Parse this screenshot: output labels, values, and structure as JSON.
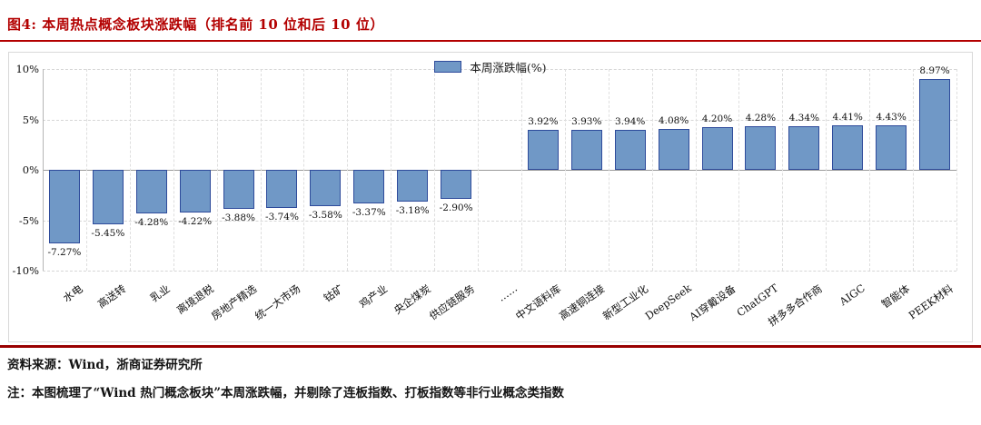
{
  "header": {
    "title": "图4:  本周热点概念板块涨跌幅（排名前 10 位和后 10 位）"
  },
  "chart_data": {
    "type": "bar",
    "title": "本周热点概念板块涨跌幅（排名前 10 位和后 10 位）",
    "legend": "本周涨跌幅(%)",
    "legend_position": "top-center",
    "xlabel": "",
    "ylabel": "",
    "ylim": [
      -10,
      10
    ],
    "yticks": [
      "10%",
      "5%",
      "0%",
      "-5%",
      "-10%"
    ],
    "ytick_values": [
      10,
      5,
      0,
      -5,
      -10
    ],
    "grid": "dashed-both-axes",
    "categories": [
      "水电",
      "高送转",
      "乳业",
      "离境退税",
      "房地产精选",
      "统一大市场",
      "钴矿",
      "鸡产业",
      "央企煤炭",
      "供应链服务",
      "……",
      "中文语料库",
      "高速铜连接",
      "新型工业化",
      "DeepSeek",
      "AI穿戴设备",
      "ChatGPT",
      "拼多多合作商",
      "AIGC",
      "智能体",
      "PEEK材料"
    ],
    "values": [
      -7.27,
      -5.45,
      -4.28,
      -4.22,
      -3.88,
      -3.74,
      -3.58,
      -3.37,
      -3.18,
      -2.9,
      null,
      3.92,
      3.93,
      3.94,
      4.08,
      4.2,
      4.28,
      4.34,
      4.41,
      4.43,
      8.97
    ],
    "labels": [
      "-7.27%",
      "-5.45%",
      "-4.28%",
      "-4.22%",
      "-3.88%",
      "-3.74%",
      "-3.58%",
      "-3.37%",
      "-3.18%",
      "-2.90%",
      "",
      "3.92%",
      "3.93%",
      "3.94%",
      "4.08%",
      "4.20%",
      "4.28%",
      "4.34%",
      "4.41%",
      "4.43%",
      "8.97%"
    ]
  },
  "footer": {
    "source": "资料来源：Wind，浙商证券研究所",
    "note": "注：本图梳理了“Wind 热门概念板块”本周涨跌幅，并剔除了连板指数、打板指数等非行业概念类指数"
  },
  "colors": {
    "accent_red": "#b30000",
    "footer_rule_red": "#990000",
    "bar_fill": "#7098c6",
    "bar_border": "#2e4b9b",
    "gridline": "#d6d6d6",
    "zero_line": "#9a9a9a"
  }
}
